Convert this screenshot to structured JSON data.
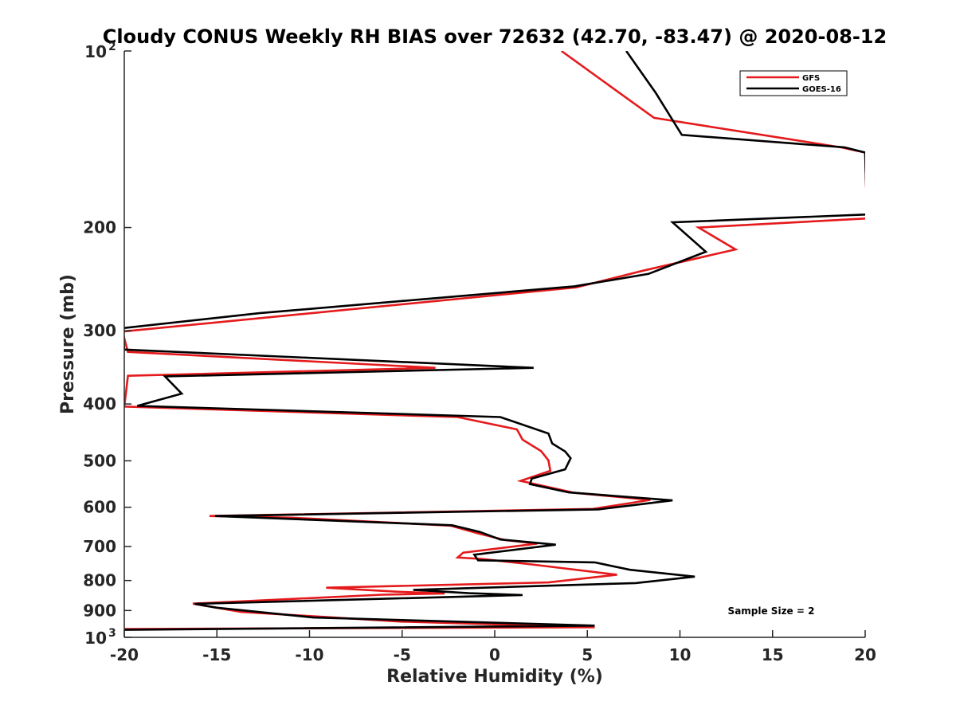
{
  "chart_data": {
    "type": "line",
    "title": "Cloudy CONUS Weekly RH BIAS over 72632 (42.70, -83.47) @ 2020-08-12",
    "xlabel": "Relative Humidity (%)",
    "ylabel": "Pressure (mb)",
    "xlim": [
      -20,
      20
    ],
    "ylim": [
      100,
      1000
    ],
    "y_scale": "log",
    "y_reversed": true,
    "x_ticks": [
      "-20",
      "-15",
      "-10",
      "-5",
      "0",
      "5",
      "10",
      "15",
      "20"
    ],
    "y_ticks": [
      {
        "value": 100,
        "base": "10",
        "exp": "2"
      },
      {
        "value": 200,
        "label": "200"
      },
      {
        "value": 300,
        "label": "300"
      },
      {
        "value": 400,
        "label": "400"
      },
      {
        "value": 500,
        "label": "500"
      },
      {
        "value": 600,
        "label": "600"
      },
      {
        "value": 700,
        "label": "700"
      },
      {
        "value": 800,
        "label": "800"
      },
      {
        "value": 900,
        "label": "900"
      },
      {
        "value": 1000,
        "base": "10",
        "exp": "3"
      }
    ],
    "grid": false,
    "legend_position": "top-right",
    "annotation": "Sample Size = 2",
    "series": [
      {
        "name": "GFS",
        "color": "#e41a1c",
        "points": [
          [
            3.6,
            100
          ],
          [
            8.6,
            130
          ],
          [
            18.7,
            146
          ],
          [
            20.0,
            149
          ],
          [
            20.1,
            193
          ],
          [
            11.0,
            200
          ],
          [
            13.0,
            218
          ],
          [
            8.0,
            237
          ],
          [
            4.4,
            253
          ],
          [
            -20.1,
            301
          ],
          [
            -19.8,
            326
          ],
          [
            -3.2,
            347
          ],
          [
            -19.8,
            358
          ],
          [
            -20.0,
            404
          ],
          [
            -2.0,
            421
          ],
          [
            1.2,
            442
          ],
          [
            1.5,
            460
          ],
          [
            2.5,
            481
          ],
          [
            2.9,
            499
          ],
          [
            3.0,
            520
          ],
          [
            1.4,
            541
          ],
          [
            4.3,
            567
          ],
          [
            8.4,
            583
          ],
          [
            5.3,
            604
          ],
          [
            -15.4,
            621
          ],
          [
            -11.0,
            625
          ],
          [
            -2.4,
            645
          ],
          [
            -0.8,
            666
          ],
          [
            0.6,
            683
          ],
          [
            2.3,
            692
          ],
          [
            -1.7,
            717
          ],
          [
            -2.0,
            731
          ],
          [
            -0.7,
            735
          ],
          [
            2.0,
            751
          ],
          [
            6.6,
            782
          ],
          [
            2.9,
            806
          ],
          [
            -9.1,
            823
          ],
          [
            -5.3,
            836
          ],
          [
            -2.7,
            842
          ],
          [
            -6.1,
            846
          ],
          [
            -16.3,
            876
          ],
          [
            -13.7,
            905
          ],
          [
            -5.1,
            940
          ],
          [
            5.4,
            961
          ],
          [
            -20.0,
            968
          ]
        ]
      },
      {
        "name": "GOES-16",
        "color": "#000000",
        "points": [
          [
            7.1,
            100
          ],
          [
            8.7,
            118
          ],
          [
            10.1,
            139
          ],
          [
            18.9,
            146
          ],
          [
            20.0,
            149
          ],
          [
            20.1,
            190
          ],
          [
            9.6,
            196
          ],
          [
            11.4,
            220
          ],
          [
            8.3,
            240
          ],
          [
            4.3,
            252
          ],
          [
            -12.7,
            280
          ],
          [
            -20.1,
            297
          ],
          [
            -20.0,
            323
          ],
          [
            2.1,
            347
          ],
          [
            -17.8,
            359
          ],
          [
            -16.9,
            384
          ],
          [
            -19.3,
            403
          ],
          [
            0.3,
            421
          ],
          [
            2.9,
            449
          ],
          [
            3.1,
            467
          ],
          [
            3.8,
            482
          ],
          [
            4.1,
            495
          ],
          [
            3.8,
            517
          ],
          [
            2.0,
            536
          ],
          [
            1.9,
            548
          ],
          [
            4.0,
            566
          ],
          [
            9.6,
            584
          ],
          [
            5.6,
            605
          ],
          [
            -15.1,
            621
          ],
          [
            -2.3,
            644
          ],
          [
            -0.8,
            661
          ],
          [
            0.3,
            681
          ],
          [
            3.3,
            695
          ],
          [
            -1.1,
            723
          ],
          [
            -0.9,
            739
          ],
          [
            5.4,
            745
          ],
          [
            7.3,
            767
          ],
          [
            10.8,
            788
          ],
          [
            7.6,
            808
          ],
          [
            -4.4,
            830
          ],
          [
            -1.4,
            841
          ],
          [
            1.5,
            847
          ],
          [
            -16.2,
            877
          ],
          [
            -15.0,
            890
          ],
          [
            -9.8,
            925
          ],
          [
            5.4,
            955
          ],
          [
            -20.0,
            971
          ]
        ]
      }
    ]
  }
}
